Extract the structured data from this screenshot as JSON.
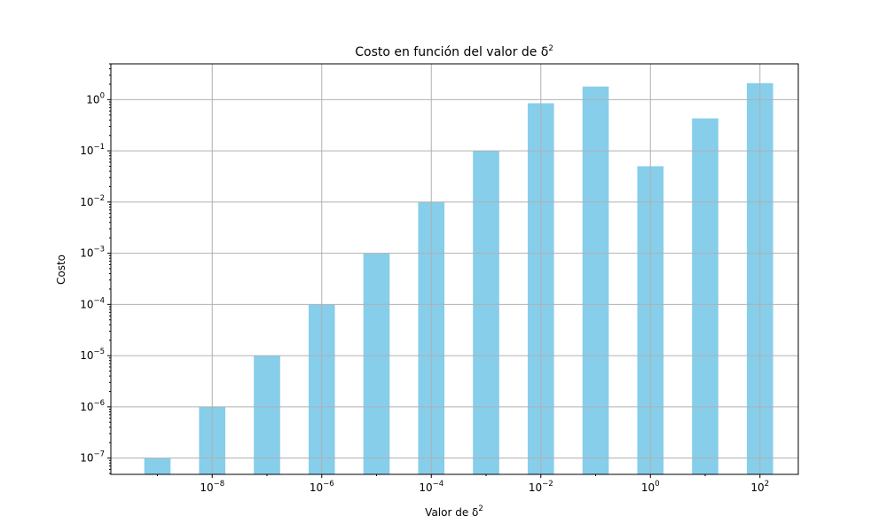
{
  "chart_data": {
    "type": "bar",
    "title": "Costo en función del valor de δ",
    "title_superscript": "2",
    "xlabel": "Valor de δ",
    "xlabel_superscript": "2",
    "ylabel": "Costo",
    "x_scale": "log",
    "y_scale": "log",
    "x": [
      1e-09,
      1e-08,
      1e-07,
      1e-06,
      1e-05,
      0.0001,
      0.001,
      0.01,
      0.1,
      1,
      10,
      100
    ],
    "values": [
      1e-07,
      1e-06,
      1e-05,
      0.0001,
      0.001,
      0.01,
      0.1,
      0.85,
      1.8,
      0.05,
      0.43,
      2.1
    ],
    "xlim_exp": [
      -9.85,
      102.7
    ],
    "ylim": [
      4.8e-08,
      5.0
    ],
    "x_ticks": [
      {
        "exp": -8,
        "base": "10",
        "power": "−8"
      },
      {
        "exp": -6,
        "base": "10",
        "power": "−6"
      },
      {
        "exp": -4,
        "base": "10",
        "power": "−4"
      },
      {
        "exp": -2,
        "base": "10",
        "power": "−2"
      },
      {
        "exp": 0,
        "base": "10",
        "power": "0"
      },
      {
        "exp": 2,
        "base": "10",
        "power": "2"
      }
    ],
    "y_ticks": [
      {
        "exp": -7,
        "base": "10",
        "power": "−7"
      },
      {
        "exp": -6,
        "base": "10",
        "power": "−6"
      },
      {
        "exp": -5,
        "base": "10",
        "power": "−5"
      },
      {
        "exp": -4,
        "base": "10",
        "power": "−4"
      },
      {
        "exp": -3,
        "base": "10",
        "power": "−3"
      },
      {
        "exp": -2,
        "base": "10",
        "power": "−2"
      },
      {
        "exp": -1,
        "base": "10",
        "power": "−1"
      },
      {
        "exp": 0,
        "base": "10",
        "power": "0"
      }
    ],
    "grid": true,
    "bar_color": "#87ceeb",
    "grid_color": "#b0b0b0"
  }
}
